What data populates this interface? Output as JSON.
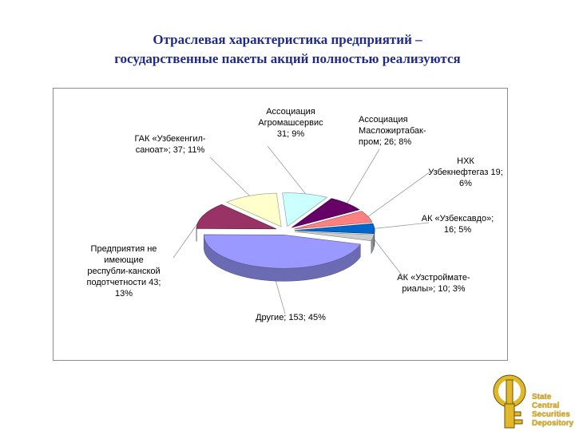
{
  "title": {
    "line1": "Отраслевая характеристика предприятий –",
    "line2": "государственные пакеты акций полностью реализуются"
  },
  "chart_data": {
    "type": "pie",
    "style": "3d-exploded",
    "grid": false,
    "legend": "none",
    "slices": [
      {
        "label": "Ассоциация\nАгромашсервис\n31; 9%",
        "value": 31,
        "percent": 9,
        "color": "#ccffff"
      },
      {
        "label": "Ассоциация\nМасложиртабак-\nпром; 26; 8%",
        "value": 26,
        "percent": 8,
        "color": "#660066"
      },
      {
        "label": "НХК\nУзбекнефтегаз 19;\n6%",
        "value": 19,
        "percent": 6,
        "color": "#ff8080"
      },
      {
        "label": "АК «Узбексавдо»;\n16; 5%",
        "value": 16,
        "percent": 5,
        "color": "#0066cc"
      },
      {
        "label": "АК «Узстройматe-\nриалы»; 10; 3%",
        "value": 10,
        "percent": 3,
        "color": "#cccccc"
      },
      {
        "label": "Другие; 153; 45%",
        "value": 153,
        "percent": 45,
        "color": "#9999ff"
      },
      {
        "label": "Предприятия не\nимеющие\nреспубли-канской\nподотчетности 43;\n13%",
        "value": 43,
        "percent": 13,
        "color": "#993366"
      },
      {
        "label": "ГАК «Узбекенгил-\nсаноат»; 37; 11%",
        "value": 37,
        "percent": 11,
        "color": "#ffffcc"
      }
    ]
  },
  "logo": {
    "line1": "State",
    "line2": "Central",
    "line3": "Securities",
    "line4": "Depository",
    "color": "#e0b82a"
  }
}
